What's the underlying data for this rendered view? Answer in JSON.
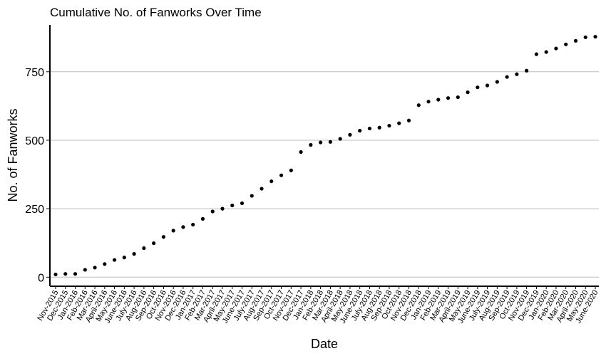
{
  "chart_data": {
    "type": "scatter",
    "title": "Cumulative No. of Fanworks Over Time",
    "x_label": "Date",
    "y_label": "No. of Fanworks",
    "categories": [
      "Nov-2015",
      "Dec-2015",
      "Jan-2016",
      "Feb-2016",
      "Mar-2016",
      "April-2016",
      "May-2016",
      "June-2016",
      "July-2016",
      "Aug-2016",
      "Sep-2016",
      "Oct-2016",
      "Nov-2016",
      "Dec-2016",
      "Jan-2017",
      "Feb-2017",
      "Mar-2017",
      "April-2017",
      "May-2017",
      "June-2017",
      "July-2017",
      "Aug-2017",
      "Sep-2017",
      "Oct-2017",
      "Nov-2017",
      "Dec-2017",
      "Jan-2018",
      "Feb-2018",
      "Mar-2018",
      "April-2018",
      "May-2018",
      "June-2018",
      "July-2018",
      "Aug-2018",
      "Sep-2018",
      "Oct-2018",
      "Nov-2018",
      "Dec-2018",
      "Jan-2019",
      "Feb-2019",
      "Mar-2019",
      "April-2019",
      "May-2019",
      "June-2019",
      "July-2019",
      "Aug-2019",
      "Sep-2019",
      "Oct-2019",
      "Nov-2019",
      "Dec-2019",
      "Jan-2020",
      "Feb-2020",
      "Mar-2020",
      "April-2020",
      "May-2020",
      "June-2020"
    ],
    "values": [
      10,
      12,
      12,
      27,
      35,
      48,
      63,
      72,
      85,
      106,
      124,
      147,
      170,
      183,
      192,
      213,
      240,
      250,
      262,
      270,
      297,
      323,
      350,
      372,
      390,
      457,
      483,
      492,
      494,
      505,
      520,
      535,
      543,
      546,
      553,
      562,
      572,
      628,
      641,
      648,
      654,
      657,
      675,
      693,
      700,
      713,
      731,
      741,
      754,
      814,
      822,
      835,
      850,
      863,
      876,
      878
    ],
    "color": "#000000",
    "ylim": [
      -33,
      921
    ],
    "yticks": [
      0,
      250,
      500,
      750
    ],
    "grid": true
  }
}
